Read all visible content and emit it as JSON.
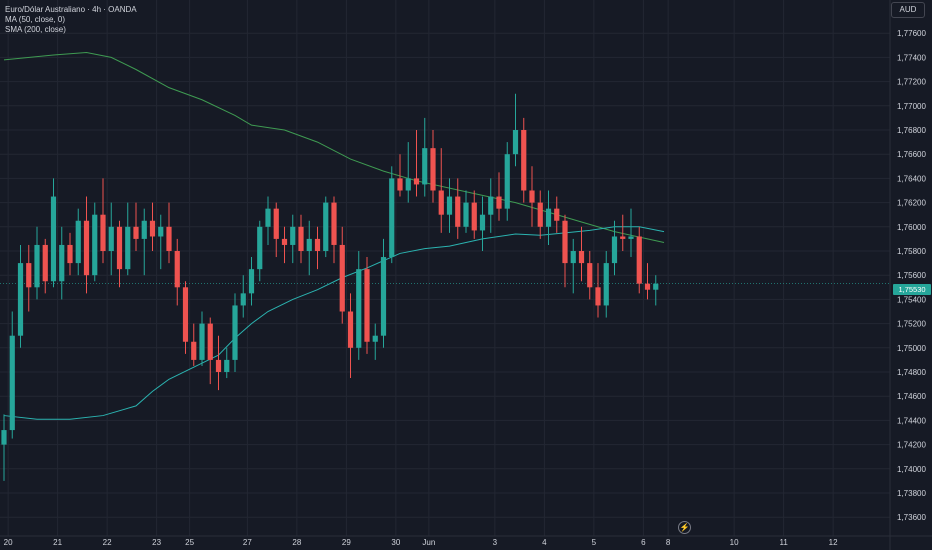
{
  "legend": {
    "symbol": "Euro/Dólar Australiano · 4h · OANDA",
    "ma": "MA (50, close, 0)",
    "sma": "SMA (200, close)"
  },
  "currency_label": "AUD",
  "current_price_label": "1,75530",
  "colors": {
    "background": "#161a25",
    "up": "#26a69a",
    "down": "#ef5350",
    "ma50": "#2bb3b0",
    "sma200": "#3f9b52",
    "grid": "#232733",
    "axis_text": "#d1d4dc"
  },
  "chart_data": {
    "type": "candlestick",
    "symbol": "Euro/Dólar Australiano",
    "interval": "4h",
    "source": "OANDA",
    "ylim": [
      1.7355,
      1.779
    ],
    "grid": true,
    "y_ticks": [
      "1,73600",
      "1,73800",
      "1,74000",
      "1,74200",
      "1,74400",
      "1,74600",
      "1,74800",
      "1,75000",
      "1,75200",
      "1,75400",
      "1,75600",
      "1,75800",
      "1,76000",
      "1,76200",
      "1,76400",
      "1,76600",
      "1,76800",
      "1,77000",
      "1,77200",
      "1,77400",
      "1,77600"
    ],
    "x_ticks": [
      {
        "label": "20",
        "bar": 0.5
      },
      {
        "label": "21",
        "bar": 6.5
      },
      {
        "label": "22",
        "bar": 12.5
      },
      {
        "label": "23",
        "bar": 18.5
      },
      {
        "label": "25",
        "bar": 22.5
      },
      {
        "label": "27",
        "bar": 29.5
      },
      {
        "label": "28",
        "bar": 35.5
      },
      {
        "label": "29",
        "bar": 41.5
      },
      {
        "label": "30",
        "bar": 47.5
      },
      {
        "label": "Jun",
        "bar": 51.5
      },
      {
        "label": "3",
        "bar": 59.5
      },
      {
        "label": "4",
        "bar": 65.5
      },
      {
        "label": "5",
        "bar": 71.5
      },
      {
        "label": "6",
        "bar": 77.5
      },
      {
        "label": "8",
        "bar": 80.5
      },
      {
        "label": "10",
        "bar": 88.5
      },
      {
        "label": "11",
        "bar": 94.5
      },
      {
        "label": "12",
        "bar": 100.5
      }
    ],
    "candles": [
      [
        1.742,
        1.7445,
        1.739,
        1.7432
      ],
      [
        1.7432,
        1.753,
        1.7425,
        1.751
      ],
      [
        1.751,
        1.7585,
        1.75,
        1.757
      ],
      [
        1.757,
        1.7585,
        1.753,
        1.755
      ],
      [
        1.755,
        1.76,
        1.754,
        1.7585
      ],
      [
        1.7585,
        1.759,
        1.7545,
        1.7555
      ],
      [
        1.7555,
        1.764,
        1.755,
        1.7625
      ],
      [
        1.7555,
        1.76,
        1.754,
        1.7585
      ],
      [
        1.7585,
        1.7595,
        1.756,
        1.757
      ],
      [
        1.757,
        1.7615,
        1.756,
        1.7605
      ],
      [
        1.7605,
        1.7625,
        1.7545,
        1.756
      ],
      [
        1.756,
        1.762,
        1.7555,
        1.761
      ],
      [
        1.761,
        1.764,
        1.757,
        1.758
      ],
      [
        1.758,
        1.762,
        1.756,
        1.76
      ],
      [
        1.76,
        1.7605,
        1.755,
        1.7565
      ],
      [
        1.7565,
        1.762,
        1.756,
        1.76
      ],
      [
        1.76,
        1.762,
        1.758,
        1.759
      ],
      [
        1.759,
        1.7615,
        1.756,
        1.7605
      ],
      [
        1.7605,
        1.762,
        1.758,
        1.7592
      ],
      [
        1.7592,
        1.761,
        1.7565,
        1.76
      ],
      [
        1.76,
        1.762,
        1.757,
        1.758
      ],
      [
        1.758,
        1.759,
        1.7535,
        1.755
      ],
      [
        1.755,
        1.7555,
        1.7495,
        1.7505
      ],
      [
        1.7505,
        1.752,
        1.7485,
        1.749
      ],
      [
        1.749,
        1.753,
        1.7485,
        1.752
      ],
      [
        1.752,
        1.7525,
        1.747,
        1.749
      ],
      [
        1.749,
        1.751,
        1.7465,
        1.748
      ],
      [
        1.748,
        1.75,
        1.7475,
        1.749
      ],
      [
        1.749,
        1.7545,
        1.748,
        1.7535
      ],
      [
        1.7535,
        1.756,
        1.7525,
        1.7545
      ],
      [
        1.7545,
        1.7575,
        1.7535,
        1.7565
      ],
      [
        1.7565,
        1.7605,
        1.7555,
        1.76
      ],
      [
        1.76,
        1.7625,
        1.7585,
        1.7615
      ],
      [
        1.7615,
        1.762,
        1.7575,
        1.759
      ],
      [
        1.759,
        1.76,
        1.757,
        1.7585
      ],
      [
        1.7585,
        1.761,
        1.757,
        1.76
      ],
      [
        1.76,
        1.761,
        1.757,
        1.758
      ],
      [
        1.758,
        1.7605,
        1.756,
        1.759
      ],
      [
        1.759,
        1.76,
        1.7565,
        1.758
      ],
      [
        1.758,
        1.7625,
        1.7575,
        1.762
      ],
      [
        1.762,
        1.7625,
        1.757,
        1.7585
      ],
      [
        1.7585,
        1.76,
        1.752,
        1.753
      ],
      [
        1.753,
        1.7545,
        1.7475,
        1.75
      ],
      [
        1.75,
        1.758,
        1.749,
        1.7565
      ],
      [
        1.7565,
        1.7575,
        1.7495,
        1.7505
      ],
      [
        1.7505,
        1.752,
        1.749,
        1.751
      ],
      [
        1.751,
        1.759,
        1.75,
        1.7575
      ],
      [
        1.7575,
        1.765,
        1.757,
        1.764
      ],
      [
        1.764,
        1.766,
        1.7625,
        1.763
      ],
      [
        1.763,
        1.767,
        1.762,
        1.764
      ],
      [
        1.764,
        1.768,
        1.7625,
        1.7635
      ],
      [
        1.7635,
        1.769,
        1.7625,
        1.7665
      ],
      [
        1.7665,
        1.768,
        1.762,
        1.763
      ],
      [
        1.763,
        1.7665,
        1.7595,
        1.761
      ],
      [
        1.761,
        1.764,
        1.7595,
        1.7625
      ],
      [
        1.7625,
        1.764,
        1.759,
        1.76
      ],
      [
        1.76,
        1.763,
        1.7595,
        1.762
      ],
      [
        1.762,
        1.763,
        1.759,
        1.7597
      ],
      [
        1.7597,
        1.7625,
        1.758,
        1.761
      ],
      [
        1.761,
        1.764,
        1.7595,
        1.7625
      ],
      [
        1.7625,
        1.7645,
        1.7605,
        1.7615
      ],
      [
        1.7615,
        1.767,
        1.7605,
        1.766
      ],
      [
        1.766,
        1.771,
        1.765,
        1.768
      ],
      [
        1.768,
        1.769,
        1.762,
        1.763
      ],
      [
        1.763,
        1.765,
        1.76,
        1.762
      ],
      [
        1.762,
        1.763,
        1.759,
        1.76
      ],
      [
        1.76,
        1.763,
        1.7585,
        1.7615
      ],
      [
        1.7615,
        1.7625,
        1.7595,
        1.7605
      ],
      [
        1.7605,
        1.761,
        1.755,
        1.757
      ],
      [
        1.757,
        1.759,
        1.7545,
        1.758
      ],
      [
        1.758,
        1.76,
        1.7555,
        1.757
      ],
      [
        1.757,
        1.758,
        1.754,
        1.755
      ],
      [
        1.755,
        1.757,
        1.7525,
        1.7535
      ],
      [
        1.7535,
        1.758,
        1.7525,
        1.757
      ],
      [
        1.757,
        1.7605,
        1.756,
        1.7592
      ],
      [
        1.7592,
        1.761,
        1.758,
        1.759
      ],
      [
        1.759,
        1.7615,
        1.7575,
        1.7592
      ],
      [
        1.7592,
        1.76,
        1.7545,
        1.7553
      ],
      [
        1.7553,
        1.757,
        1.754,
        1.7548
      ],
      [
        1.7548,
        1.756,
        1.7535,
        1.7553
      ]
    ],
    "series": [
      {
        "name": "SMA (200, close)",
        "points": [
          [
            0,
            1.7738
          ],
          [
            6,
            1.7742
          ],
          [
            10,
            1.7744
          ],
          [
            13,
            1.774
          ],
          [
            16,
            1.773
          ],
          [
            20,
            1.7715
          ],
          [
            24,
            1.7705
          ],
          [
            28,
            1.7692
          ],
          [
            30,
            1.7684
          ],
          [
            34,
            1.768
          ],
          [
            38,
            1.767
          ],
          [
            42,
            1.7656
          ],
          [
            46,
            1.7646
          ],
          [
            50,
            1.7638
          ],
          [
            54,
            1.7632
          ],
          [
            58,
            1.7626
          ],
          [
            62,
            1.762
          ],
          [
            66,
            1.7612
          ],
          [
            70,
            1.7604
          ],
          [
            74,
            1.7596
          ],
          [
            78,
            1.759
          ],
          [
            80,
            1.7587
          ]
        ]
      },
      {
        "name": "MA (50, close, 0)",
        "points": [
          [
            0,
            1.7444
          ],
          [
            4,
            1.7441
          ],
          [
            8,
            1.7441
          ],
          [
            12,
            1.7444
          ],
          [
            16,
            1.7452
          ],
          [
            18,
            1.7464
          ],
          [
            20,
            1.7474
          ],
          [
            23,
            1.7484
          ],
          [
            26,
            1.7494
          ],
          [
            28,
            1.7508
          ],
          [
            30,
            1.752
          ],
          [
            32,
            1.753
          ],
          [
            35,
            1.754
          ],
          [
            38,
            1.7548
          ],
          [
            41,
            1.7558
          ],
          [
            44,
            1.7566
          ],
          [
            46,
            1.7572
          ],
          [
            48,
            1.7578
          ],
          [
            51,
            1.7582
          ],
          [
            54,
            1.7584
          ],
          [
            58,
            1.759
          ],
          [
            62,
            1.7594
          ],
          [
            65,
            1.7593
          ],
          [
            68,
            1.7595
          ],
          [
            71,
            1.7597
          ],
          [
            74,
            1.76
          ],
          [
            77,
            1.76
          ],
          [
            80,
            1.7596
          ]
        ]
      }
    ],
    "current_price": 1.7553
  }
}
